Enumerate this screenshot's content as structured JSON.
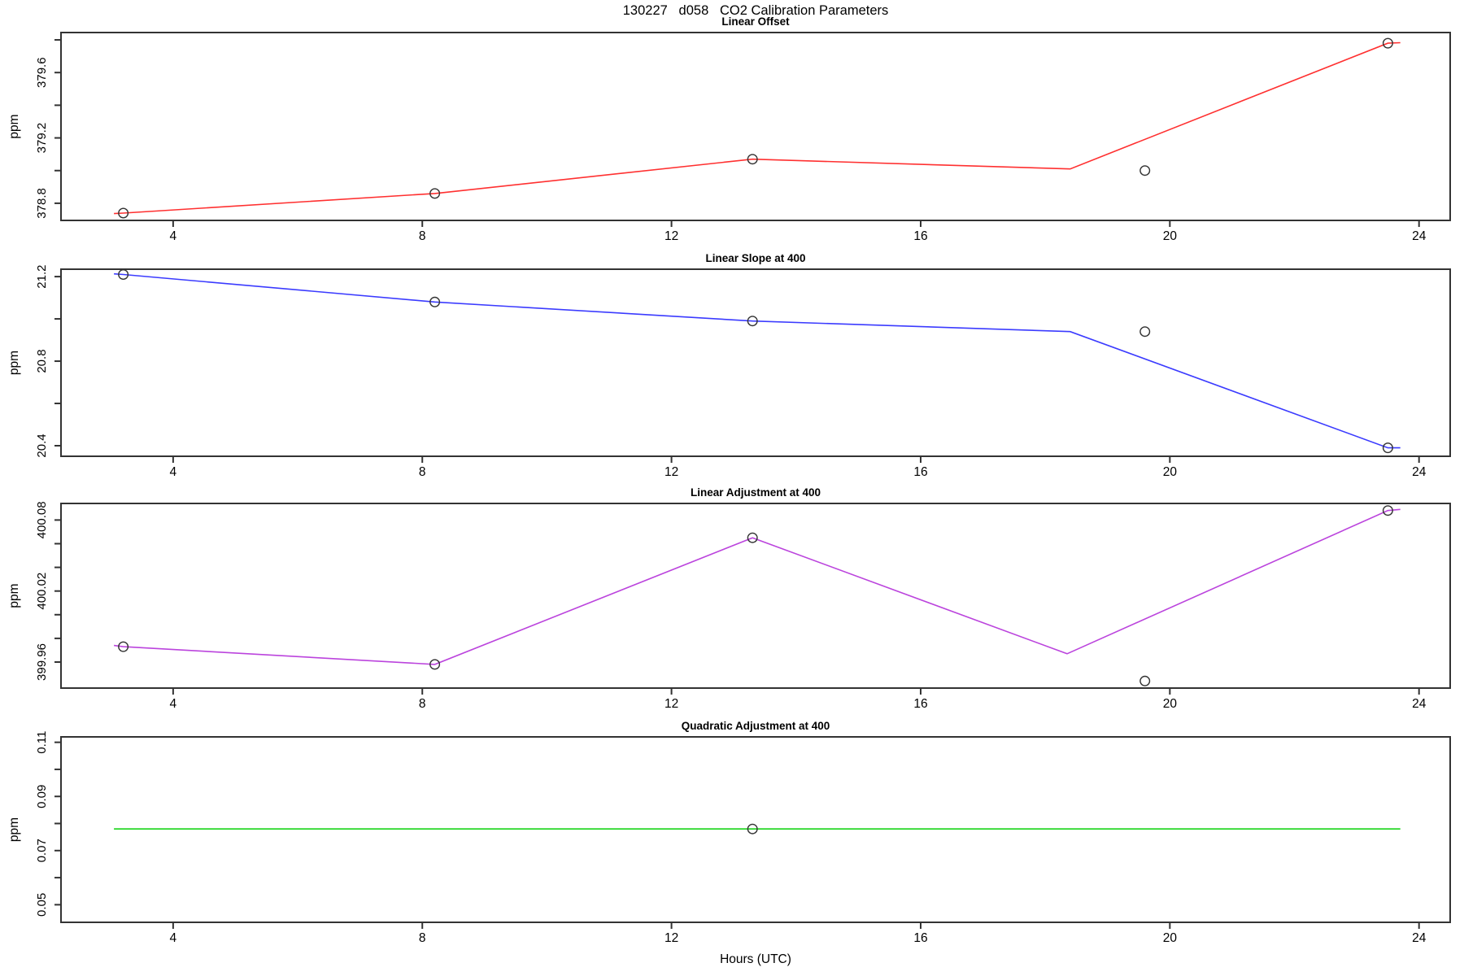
{
  "header": {
    "title_display": "130227   d058   CO2 Calibration Parameters",
    "x_axis_title": "Hours (UTC)"
  },
  "figure": {
    "frame_color": "#333333",
    "point_color": "#333333",
    "background": "#ffffff",
    "x_axis": {
      "lim": [
        2.2,
        24.5
      ],
      "ticks": [
        {
          "value": 4,
          "label": "4"
        },
        {
          "value": 8,
          "label": "8"
        },
        {
          "value": 12,
          "label": "12"
        },
        {
          "value": 16,
          "label": "16"
        },
        {
          "value": 20,
          "label": "20"
        },
        {
          "value": 24,
          "label": "24"
        }
      ]
    }
  },
  "chart_data": [
    {
      "type": "line",
      "title": "Linear Offset",
      "ylabel": "ppm",
      "line_color": "#ff3030",
      "x": [
        3.2,
        8.2,
        13.3,
        19.6,
        23.5
      ],
      "y": [
        378.74,
        378.86,
        379.07,
        379.0,
        379.78
      ],
      "isolated_point_index": 3,
      "line_x": [
        3.05,
        3.2,
        8.2,
        13.3,
        18.4,
        23.5,
        23.7
      ],
      "line_y": [
        378.737,
        378.74,
        378.86,
        379.07,
        379.01,
        379.78,
        379.783
      ],
      "ylim": [
        378.695,
        379.845
      ],
      "yticks": [
        {
          "value": 378.8,
          "label": "378.8"
        },
        {
          "value": 379.0,
          "label": ""
        },
        {
          "value": 379.2,
          "label": "379.2"
        },
        {
          "value": 379.4,
          "label": ""
        },
        {
          "value": 379.6,
          "label": "379.6"
        },
        {
          "value": 379.8,
          "label": ""
        }
      ]
    },
    {
      "type": "line",
      "title": "Linear Slope at 400",
      "ylabel": "ppm",
      "line_color": "#3b3bff",
      "x": [
        3.2,
        8.2,
        13.3,
        19.6,
        23.5
      ],
      "y": [
        21.21,
        21.08,
        20.99,
        20.94,
        20.39
      ],
      "isolated_point_index": 3,
      "line_x": [
        3.05,
        3.2,
        8.2,
        13.3,
        18.4,
        23.5,
        23.7
      ],
      "line_y": [
        21.213,
        21.21,
        21.08,
        20.99,
        20.94,
        20.39,
        20.39
      ],
      "ylim": [
        20.35,
        21.235
      ],
      "yticks": [
        {
          "value": 20.4,
          "label": "20.4"
        },
        {
          "value": 20.6,
          "label": ""
        },
        {
          "value": 20.8,
          "label": "20.8"
        },
        {
          "value": 21.0,
          "label": ""
        },
        {
          "value": 21.2,
          "label": "21.2"
        }
      ]
    },
    {
      "type": "line",
      "title": "Linear Adjustment at 400",
      "ylabel": "ppm",
      "line_color": "#bb44dd",
      "x": [
        3.2,
        8.2,
        13.3,
        19.6,
        23.5
      ],
      "y": [
        399.973,
        399.958,
        400.065,
        399.944,
        400.088
      ],
      "isolated_point_index": 3,
      "line_x": [
        3.05,
        3.2,
        8.2,
        13.3,
        18.35,
        23.5,
        23.7
      ],
      "line_y": [
        399.974,
        399.973,
        399.958,
        400.065,
        399.967,
        400.088,
        400.089
      ],
      "ylim": [
        399.938,
        400.094
      ],
      "yticks": [
        {
          "value": 399.96,
          "label": "399.96"
        },
        {
          "value": 399.98,
          "label": ""
        },
        {
          "value": 400.0,
          "label": ""
        },
        {
          "value": 400.02,
          "label": "400.02"
        },
        {
          "value": 400.04,
          "label": ""
        },
        {
          "value": 400.06,
          "label": ""
        },
        {
          "value": 400.08,
          "label": "400.08"
        }
      ]
    },
    {
      "type": "line",
      "title": "Quadratic Adjustment at 400",
      "ylabel": "ppm",
      "line_color": "#17d417",
      "x": [
        13.3
      ],
      "y": [
        0.078
      ],
      "isolated_point_index": -1,
      "line_x": [
        3.05,
        23.7
      ],
      "line_y": [
        0.078,
        0.078
      ],
      "ylim": [
        0.0435,
        0.112
      ],
      "yticks": [
        {
          "value": 0.05,
          "label": "0.05"
        },
        {
          "value": 0.06,
          "label": ""
        },
        {
          "value": 0.07,
          "label": "0.07"
        },
        {
          "value": 0.08,
          "label": ""
        },
        {
          "value": 0.09,
          "label": "0.09"
        },
        {
          "value": 0.1,
          "label": ""
        },
        {
          "value": 0.11,
          "label": "0.11"
        }
      ]
    }
  ]
}
